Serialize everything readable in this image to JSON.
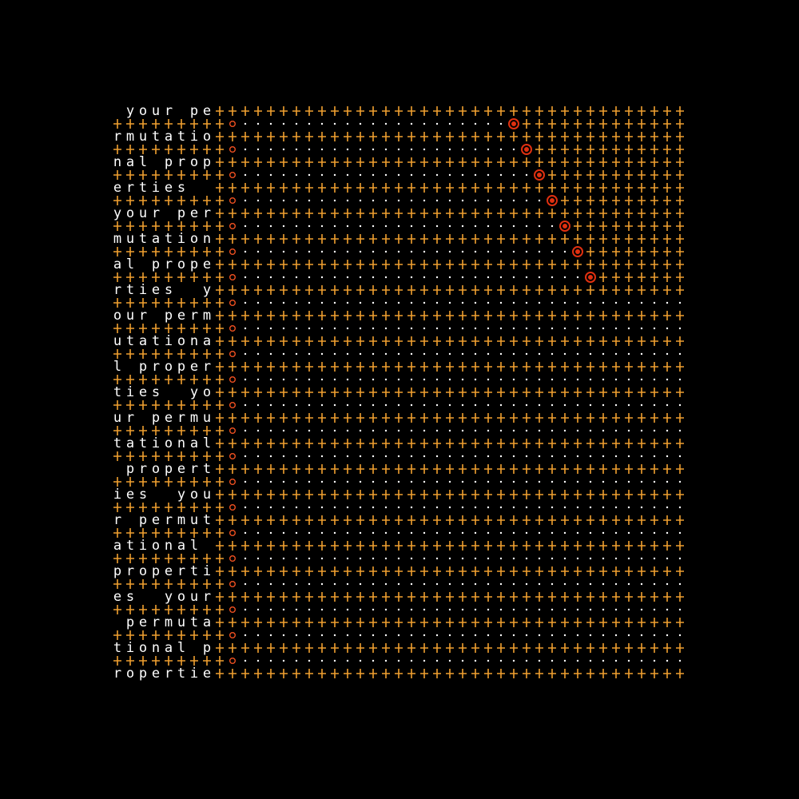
{
  "text_rows": [
    " your pe",
    "rmutatio",
    "nal prop",
    "erties  ",
    "your per",
    "mutation",
    "al prope",
    "rties  y",
    "our perm",
    "utationa",
    "l proper",
    "ties  yo",
    "ur permu",
    "tational",
    " propert",
    "ies  you",
    "r permut",
    "ational ",
    "properti",
    "es  your",
    " permuta",
    "tional p",
    "ropertie"
  ],
  "marker_row_positions": [
    31,
    32,
    33,
    34,
    35,
    36,
    37
  ],
  "colors": {
    "background": "#000000",
    "text": "#ffffff",
    "plus": "#f0a030",
    "dot": "#ffffff",
    "ring": "#f05020",
    "marker": "#e03010"
  }
}
